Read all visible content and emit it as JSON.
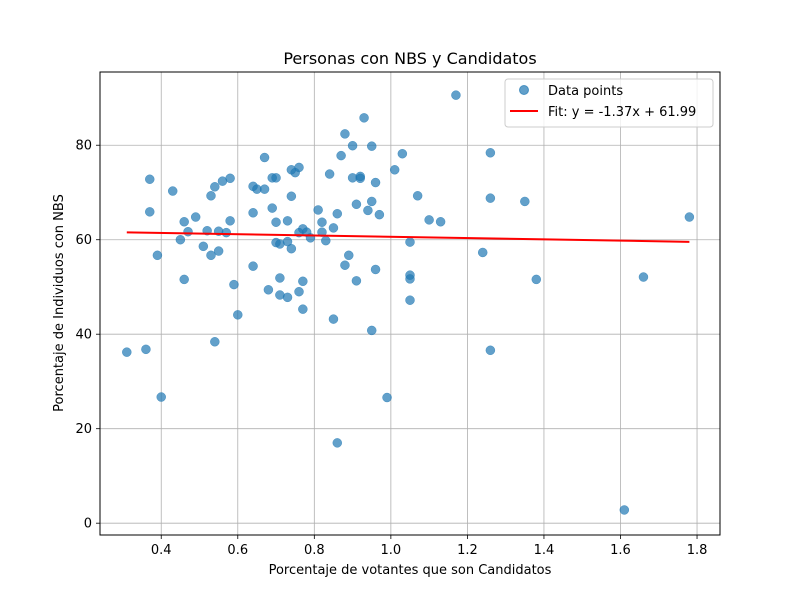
{
  "chart_data": {
    "type": "scatter",
    "title": "Personas con NBS y Candidatos",
    "xlabel": "Porcentaje de votantes que son Candidatos",
    "ylabel": "Porcentaje de Individuos con NBS",
    "xlim": [
      0.24,
      1.86
    ],
    "ylim": [
      -2.5,
      95.5
    ],
    "xticks": [
      0.4,
      0.6,
      0.8,
      1.0,
      1.2,
      1.4,
      1.6,
      1.8
    ],
    "xtick_labels": [
      "0.4",
      "0.6",
      "0.8",
      "1.0",
      "1.2",
      "1.4",
      "1.6",
      "1.8"
    ],
    "yticks": [
      0,
      20,
      40,
      60,
      80
    ],
    "ytick_labels": [
      "0",
      "20",
      "40",
      "60",
      "80"
    ],
    "grid": true,
    "legend_position": "top-right",
    "colors": {
      "points": "#1f77b4",
      "fit": "#ff0000"
    },
    "series": [
      {
        "name": "Data points",
        "kind": "scatter",
        "points": [
          [
            0.31,
            36.2
          ],
          [
            0.36,
            36.8
          ],
          [
            0.37,
            72.8
          ],
          [
            0.37,
            65.9
          ],
          [
            0.39,
            56.7
          ],
          [
            0.4,
            26.7
          ],
          [
            0.43,
            70.3
          ],
          [
            0.45,
            60.0
          ],
          [
            0.46,
            63.8
          ],
          [
            0.46,
            51.6
          ],
          [
            0.47,
            61.7
          ],
          [
            0.49,
            64.8
          ],
          [
            0.51,
            58.6
          ],
          [
            0.52,
            61.9
          ],
          [
            0.53,
            69.3
          ],
          [
            0.53,
            56.7
          ],
          [
            0.54,
            71.2
          ],
          [
            0.55,
            61.8
          ],
          [
            0.55,
            57.6
          ],
          [
            0.56,
            72.4
          ],
          [
            0.54,
            38.4
          ],
          [
            0.57,
            61.5
          ],
          [
            0.58,
            73.0
          ],
          [
            0.58,
            64.0
          ],
          [
            0.59,
            50.5
          ],
          [
            0.6,
            44.1
          ],
          [
            0.64,
            71.3
          ],
          [
            0.64,
            65.7
          ],
          [
            0.64,
            54.4
          ],
          [
            0.65,
            70.7
          ],
          [
            0.67,
            77.4
          ],
          [
            0.67,
            70.7
          ],
          [
            0.68,
            49.4
          ],
          [
            0.69,
            73.1
          ],
          [
            0.69,
            66.7
          ],
          [
            0.7,
            73.1
          ],
          [
            0.7,
            63.7
          ],
          [
            0.7,
            59.4
          ],
          [
            0.71,
            59.1
          ],
          [
            0.71,
            51.9
          ],
          [
            0.71,
            48.3
          ],
          [
            0.73,
            64.0
          ],
          [
            0.73,
            59.6
          ],
          [
            0.73,
            47.8
          ],
          [
            0.74,
            58.1
          ],
          [
            0.74,
            74.8
          ],
          [
            0.74,
            69.2
          ],
          [
            0.75,
            74.2
          ],
          [
            0.76,
            75.3
          ],
          [
            0.76,
            61.5
          ],
          [
            0.76,
            49.0
          ],
          [
            0.77,
            62.3
          ],
          [
            0.77,
            51.2
          ],
          [
            0.77,
            45.3
          ],
          [
            0.78,
            61.6
          ],
          [
            0.79,
            60.4
          ],
          [
            0.81,
            66.3
          ],
          [
            0.82,
            63.7
          ],
          [
            0.82,
            61.6
          ],
          [
            0.83,
            59.8
          ],
          [
            0.84,
            73.9
          ],
          [
            0.85,
            62.5
          ],
          [
            0.85,
            43.2
          ],
          [
            0.86,
            65.5
          ],
          [
            0.87,
            77.8
          ],
          [
            0.86,
            17.0
          ],
          [
            0.88,
            82.4
          ],
          [
            0.88,
            54.6
          ],
          [
            0.89,
            56.7
          ],
          [
            0.9,
            73.1
          ],
          [
            0.9,
            79.9
          ],
          [
            0.91,
            67.5
          ],
          [
            0.91,
            51.3
          ],
          [
            0.92,
            73.0
          ],
          [
            0.92,
            73.4
          ],
          [
            0.93,
            85.8
          ],
          [
            0.94,
            66.2
          ],
          [
            0.95,
            68.1
          ],
          [
            0.95,
            40.8
          ],
          [
            0.95,
            79.8
          ],
          [
            0.96,
            72.1
          ],
          [
            0.96,
            53.7
          ],
          [
            0.97,
            65.3
          ],
          [
            0.99,
            26.6
          ],
          [
            1.01,
            74.8
          ],
          [
            1.03,
            78.2
          ],
          [
            1.05,
            51.7
          ],
          [
            1.05,
            52.5
          ],
          [
            1.05,
            47.2
          ],
          [
            1.05,
            59.5
          ],
          [
            1.07,
            69.3
          ],
          [
            1.1,
            64.2
          ],
          [
            1.13,
            63.8
          ],
          [
            1.17,
            90.6
          ],
          [
            1.24,
            57.3
          ],
          [
            1.26,
            68.8
          ],
          [
            1.26,
            78.4
          ],
          [
            1.26,
            36.6
          ],
          [
            1.35,
            68.1
          ],
          [
            1.38,
            51.6
          ],
          [
            1.61,
            2.8
          ],
          [
            1.66,
            52.1
          ],
          [
            1.78,
            64.8
          ]
        ]
      },
      {
        "name": "Fit: y = -1.37x + 61.99",
        "kind": "line",
        "slope": -1.37,
        "intercept": 61.99,
        "x_range": [
          0.31,
          1.78
        ]
      }
    ]
  }
}
